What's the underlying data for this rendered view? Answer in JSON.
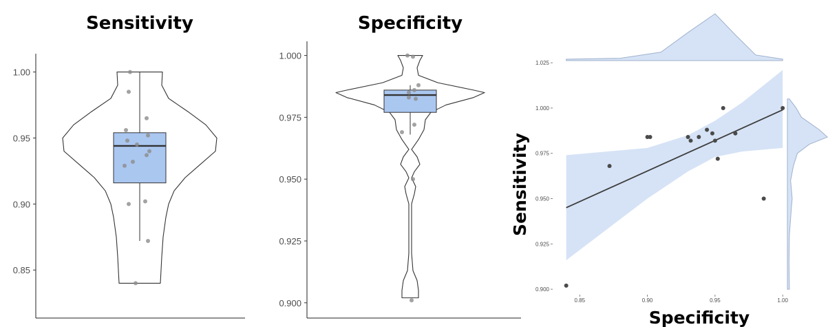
{
  "colors": {
    "box_fill": "#aac7f0",
    "band_fill": "#d6e3f6",
    "point": "#4a4a4a",
    "line": "#3d3d3d"
  },
  "chart_data": [
    {
      "type": "violin-box",
      "title": "Sensitivity",
      "ylim": [
        0.835,
        1.005
      ],
      "yticks": [
        0.85,
        0.9,
        0.95,
        1.0
      ],
      "ytick_labels": [
        "0.85",
        "0.90",
        "0.95",
        "1.00"
      ],
      "box": {
        "min": 0.872,
        "q1": 0.916,
        "median": 0.944,
        "q3": 0.954,
        "max": 1.0
      },
      "violin_range": [
        0.84,
        1.0
      ],
      "points": [
        1.0,
        0.985,
        0.965,
        0.956,
        0.952,
        0.948,
        0.945,
        0.94,
        0.937,
        0.932,
        0.929,
        0.902,
        0.9,
        0.872,
        0.84
      ]
    },
    {
      "type": "violin-box",
      "title": "Specificity",
      "ylim": [
        0.898,
        1.001
      ],
      "yticks": [
        0.9,
        0.925,
        0.95,
        0.975,
        1.0
      ],
      "ytick_labels": [
        "0.900",
        "0.925",
        "0.950",
        "0.975",
        "1.000"
      ],
      "box": {
        "min": 0.968,
        "q1": 0.977,
        "median": 0.984,
        "q3": 0.986,
        "max": 0.988
      },
      "violin_range": [
        0.902,
        1.0
      ],
      "points": [
        1.0,
        0.9995,
        0.988,
        0.986,
        0.985,
        0.983,
        0.9825,
        0.972,
        0.969,
        0.95,
        0.901
      ]
    },
    {
      "type": "scatter",
      "xlabel": "Specificity",
      "ylabel": "Sensitivity",
      "xlim": [
        0.83,
        1.005
      ],
      "ylim": [
        0.897,
        1.03
      ],
      "xticks": [
        0.85,
        0.9,
        0.95,
        1.0
      ],
      "xtick_labels": [
        "0.85",
        "0.90",
        "0.95",
        "1.00"
      ],
      "yticks": [
        0.9,
        0.925,
        0.95,
        0.975,
        1.0,
        1.025
      ],
      "ytick_labels": [
        "0.900",
        "0.925",
        "0.950",
        "0.975",
        "1.000",
        "1.025"
      ],
      "points": [
        {
          "x": 0.84,
          "y": 0.902
        },
        {
          "x": 0.872,
          "y": 0.968
        },
        {
          "x": 0.9,
          "y": 0.984
        },
        {
          "x": 0.902,
          "y": 0.984
        },
        {
          "x": 0.93,
          "y": 0.984
        },
        {
          "x": 0.932,
          "y": 0.982
        },
        {
          "x": 0.938,
          "y": 0.984
        },
        {
          "x": 0.944,
          "y": 0.988
        },
        {
          "x": 0.948,
          "y": 0.986
        },
        {
          "x": 0.95,
          "y": 0.982
        },
        {
          "x": 0.952,
          "y": 0.972
        },
        {
          "x": 0.956,
          "y": 1.0
        },
        {
          "x": 0.965,
          "y": 0.986
        },
        {
          "x": 0.986,
          "y": 0.95
        },
        {
          "x": 1.0,
          "y": 1.0
        }
      ],
      "regression": {
        "x0": 0.84,
        "y0": 0.945,
        "x1": 1.0,
        "y1": 0.999
      },
      "confidence_band": {
        "x": [
          0.84,
          0.87,
          0.9,
          0.93,
          0.95,
          0.97,
          1.0
        ],
        "upper": [
          0.974,
          0.976,
          0.978,
          0.985,
          0.993,
          1.003,
          1.021
        ],
        "lower": [
          0.916,
          0.933,
          0.95,
          0.965,
          0.973,
          0.976,
          0.978
        ]
      },
      "top_density": {
        "x": [
          0.84,
          0.88,
          0.91,
          0.93,
          0.95,
          0.965,
          0.98,
          1.0
        ],
        "d": [
          0.03,
          0.05,
          0.18,
          0.6,
          1.0,
          0.55,
          0.12,
          0.03
        ]
      },
      "right_density": {
        "y": [
          0.9,
          0.915,
          0.93,
          0.945,
          0.95,
          0.96,
          0.968,
          0.975,
          0.98,
          0.984,
          0.988,
          0.995,
          1.0,
          1.005
        ],
        "d": [
          0.05,
          0.04,
          0.05,
          0.1,
          0.12,
          0.08,
          0.15,
          0.25,
          0.55,
          1.0,
          0.8,
          0.35,
          0.22,
          0.05
        ]
      }
    }
  ]
}
